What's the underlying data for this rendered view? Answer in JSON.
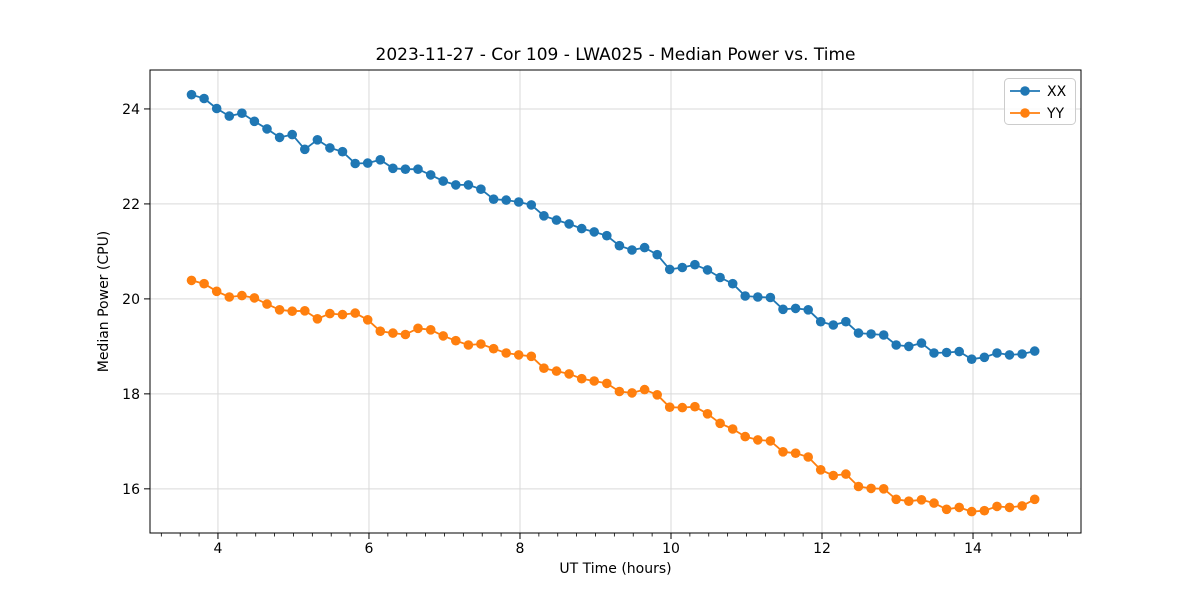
{
  "figure": {
    "background": "#ffffff"
  },
  "chart_data": {
    "type": "line",
    "title": "2023-11-27 - Cor 109 - LWA025 - Median Power vs. Time",
    "xlabel": "UT Time (hours)",
    "ylabel": "Median Power (CPU)",
    "xlim": [
      3.1,
      15.43
    ],
    "ylim": [
      15.07,
      24.82
    ],
    "x_major_ticks": [
      4,
      6,
      8,
      10,
      12,
      14
    ],
    "x_minor_step": 0.25,
    "y_major_ticks": [
      16,
      18,
      20,
      22,
      24
    ],
    "grid": true,
    "grid_color": "#d9d9d9",
    "legend": {
      "position": "upper right",
      "entries": [
        {
          "label": "XX",
          "color": "#1f77b4"
        },
        {
          "label": "YY",
          "color": "#ff7f0e"
        }
      ]
    },
    "x": [
      3.65,
      3.817,
      3.983,
      4.15,
      4.317,
      4.483,
      4.65,
      4.817,
      4.983,
      5.15,
      5.317,
      5.483,
      5.65,
      5.817,
      5.983,
      6.15,
      6.317,
      6.483,
      6.65,
      6.817,
      6.983,
      7.15,
      7.317,
      7.483,
      7.65,
      7.817,
      7.983,
      8.15,
      8.317,
      8.483,
      8.65,
      8.817,
      8.983,
      9.15,
      9.317,
      9.483,
      9.65,
      9.817,
      9.983,
      10.15,
      10.317,
      10.483,
      10.65,
      10.817,
      10.983,
      11.15,
      11.317,
      11.483,
      11.65,
      11.817,
      11.983,
      12.15,
      12.317,
      12.483,
      12.65,
      12.817,
      12.983,
      13.15,
      13.317,
      13.483,
      13.65,
      13.817,
      13.983,
      14.15,
      14.317,
      14.483,
      14.65,
      14.817
    ],
    "series": [
      {
        "name": "XX",
        "color": "#1f77b4",
        "values": [
          24.3,
          24.22,
          24.01,
          23.85,
          23.91,
          23.74,
          23.58,
          23.4,
          23.46,
          23.15,
          23.35,
          23.18,
          23.1,
          22.85,
          22.86,
          22.93,
          22.75,
          22.73,
          22.73,
          22.61,
          22.48,
          22.4,
          22.4,
          22.31,
          22.1,
          22.08,
          22.04,
          21.98,
          21.75,
          21.66,
          21.58,
          21.48,
          21.41,
          21.33,
          21.12,
          21.03,
          21.08,
          20.93,
          20.62,
          20.66,
          20.72,
          20.61,
          20.45,
          20.32,
          20.06,
          20.04,
          20.03,
          19.78,
          19.8,
          19.77,
          19.52,
          19.45,
          19.52,
          19.28,
          19.26,
          19.24,
          19.03,
          19.0,
          19.07,
          18.86,
          18.87,
          18.89,
          18.73,
          18.77,
          18.86,
          18.82,
          18.84,
          18.9
        ]
      },
      {
        "name": "YY",
        "color": "#ff7f0e",
        "values": [
          20.39,
          20.32,
          20.16,
          20.04,
          20.07,
          20.02,
          19.89,
          19.77,
          19.74,
          19.75,
          19.58,
          19.69,
          19.67,
          19.7,
          19.56,
          19.32,
          19.28,
          19.25,
          19.38,
          19.35,
          19.22,
          19.12,
          19.03,
          19.05,
          18.95,
          18.86,
          18.82,
          18.79,
          18.54,
          18.48,
          18.42,
          18.32,
          18.27,
          18.22,
          18.05,
          18.02,
          18.09,
          17.98,
          17.72,
          17.71,
          17.73,
          17.58,
          17.38,
          17.26,
          17.1,
          17.03,
          17.01,
          16.78,
          16.75,
          16.67,
          16.4,
          16.28,
          16.31,
          16.05,
          16.01,
          16.0,
          15.78,
          15.74,
          15.77,
          15.7,
          15.57,
          15.61,
          15.52,
          15.54,
          15.63,
          15.61,
          15.64,
          15.78
        ]
      }
    ]
  }
}
